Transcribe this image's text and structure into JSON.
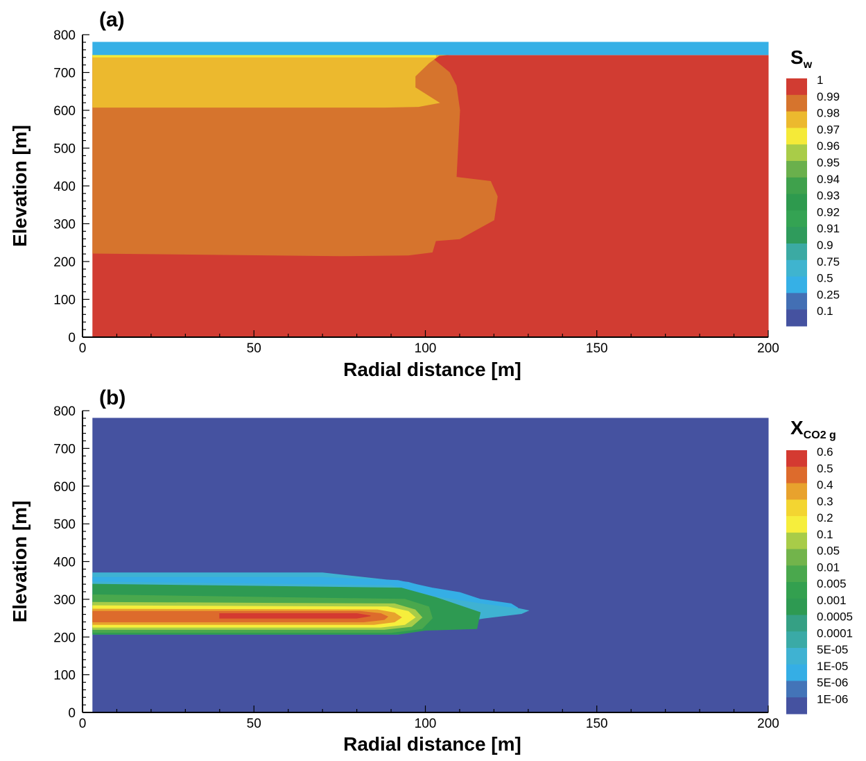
{
  "chart_data": [
    {
      "type": "heatmap",
      "panel_label": "(a)",
      "xlabel": "Radial distance [m]",
      "ylabel": "Elevation [m]",
      "xlim": [
        0,
        200
      ],
      "ylim": [
        0,
        800
      ],
      "xticks": [
        "0",
        "50",
        "100",
        "150",
        "200"
      ],
      "yticks": [
        "0",
        "100",
        "200",
        "300",
        "400",
        "500",
        "600",
        "700",
        "800"
      ],
      "legend_title": "S",
      "legend_subscript": "w",
      "legend_position": "right",
      "legend_levels": [
        "1",
        "0.99",
        "0.98",
        "0.97",
        "0.96",
        "0.95",
        "0.94",
        "0.93",
        "0.92",
        "0.91",
        "0.9",
        "0.75",
        "0.5",
        "0.25",
        "0.1"
      ],
      "legend_colors": [
        "#d13c32",
        "#d6742d",
        "#ecb92e",
        "#f5ea38",
        "#a9cc48",
        "#6ab04c",
        "#3fa14c",
        "#2e9a4e",
        "#34a353",
        "#2f9b5c",
        "#3baaa3",
        "#3fb4cf",
        "#36b0e6",
        "#436fb4",
        "#4552a0"
      ],
      "regions": [
        {
          "name": "background",
          "level": "1",
          "color": "#d13c32",
          "x": [
            3,
            200,
            200,
            3
          ],
          "y": [
            0,
            0,
            745,
            745
          ]
        },
        {
          "name": "band-0.99-lower",
          "level": "0.99",
          "color": "#d6742d",
          "x": [
            3,
            75,
            95,
            102,
            103,
            110,
            120,
            121,
            119,
            109,
            110,
            109,
            107,
            101,
            98,
            3
          ],
          "y": [
            222,
            215,
            217,
            225,
            255,
            260,
            310,
            372,
            412,
            423,
            600,
            665,
            700,
            745,
            745,
            745
          ]
        },
        {
          "name": "band-0.97-upper",
          "level": "0.97",
          "color": "#ecb92e",
          "x": [
            3,
            88,
            98,
            104,
            97,
            97,
            101,
            104,
            108,
            100,
            99,
            3
          ],
          "y": [
            608,
            608,
            610,
            620,
            660,
            690,
            725,
            745,
            748,
            748,
            748,
            748
          ]
        },
        {
          "name": "thin-layer-0.96",
          "level": "0.96",
          "color": "#f5ea38",
          "x": [
            3,
            103,
            103,
            3
          ],
          "y": [
            741,
            741,
            748,
            748
          ]
        },
        {
          "name": "top-layer-0.5",
          "level": "0.5",
          "color": "#36b0e6",
          "x": [
            3,
            200,
            200,
            3
          ],
          "y": [
            747,
            747,
            780,
            780
          ]
        }
      ]
    },
    {
      "type": "heatmap",
      "panel_label": "(b)",
      "xlabel": "Radial distance [m]",
      "ylabel": "Elevation [m]",
      "xlim": [
        0,
        200
      ],
      "ylim": [
        0,
        800
      ],
      "xticks": [
        "0",
        "50",
        "100",
        "150",
        "200"
      ],
      "yticks": [
        "0",
        "100",
        "200",
        "300",
        "400",
        "500",
        "600",
        "700",
        "800"
      ],
      "legend_title": "X",
      "legend_subscript": "CO2 g",
      "legend_position": "right",
      "legend_levels": [
        "0.6",
        "0.5",
        "0.4",
        "0.3",
        "0.2",
        "0.1",
        "0.05",
        "0.01",
        "0.005",
        "0.001",
        "0.0005",
        "0.0001",
        "5E-05",
        "1E-05",
        "5E-06",
        "1E-06"
      ],
      "legend_colors": [
        "#d43a31",
        "#dd6b2c",
        "#e8a22d",
        "#f3d531",
        "#f6ee3c",
        "#a8cc48",
        "#72b44b",
        "#4aa84d",
        "#33a04f",
        "#2e9a52",
        "#35a084",
        "#3aaaa6",
        "#3fb2d2",
        "#35aee5",
        "#4374b8",
        "#4552a0"
      ],
      "regions": [
        {
          "name": "background",
          "level": "1E-06",
          "color": "#4552a0",
          "x": [
            3,
            200,
            200,
            3
          ],
          "y": [
            0,
            0,
            780,
            780
          ]
        },
        {
          "name": "plume-5E-05",
          "level": "5E-05",
          "color": "#3fb2d2",
          "x": [
            3,
            92,
            100,
            117,
            128,
            130,
            117,
            103,
            95,
            70,
            3
          ],
          "y": [
            207,
            207,
            225,
            250,
            262,
            270,
            295,
            325,
            345,
            370,
            370
          ]
        },
        {
          "name": "plume-1E-05",
          "level": "1E-05",
          "color": "#35aee5",
          "x": [
            3,
            70,
            92,
            102,
            110,
            116,
            125,
            127,
            116,
            102,
            90,
            3
          ],
          "y": [
            358,
            358,
            350,
            330,
            318,
            300,
            288,
            277,
            290,
            310,
            338,
            348
          ]
        },
        {
          "name": "plume-0.001",
          "level": "0.001",
          "color": "#2e9a52",
          "x": [
            3,
            92,
            100,
            115,
            116,
            103,
            93,
            3
          ],
          "y": [
            207,
            207,
            218,
            222,
            265,
            305,
            330,
            340
          ]
        },
        {
          "name": "plume-0.01",
          "level": "0.01",
          "color": "#4aa84d",
          "x": [
            3,
            90,
            99,
            102,
            101,
            94,
            3
          ],
          "y": [
            212,
            212,
            222,
            250,
            280,
            300,
            312
          ]
        },
        {
          "name": "plume-0.1",
          "level": "0.1",
          "color": "#a8cc48",
          "x": [
            3,
            88,
            96,
            99,
            97,
            91,
            3
          ],
          "y": [
            220,
            220,
            228,
            252,
            272,
            288,
            292
          ]
        },
        {
          "name": "plume-0.2",
          "level": "0.2",
          "color": "#f6ee3c",
          "x": [
            3,
            87,
            94,
            97,
            95,
            89,
            3
          ],
          "y": [
            226,
            226,
            233,
            252,
            268,
            280,
            283
          ]
        },
        {
          "name": "plume-0.4",
          "level": "0.4",
          "color": "#e8a22d",
          "x": [
            3,
            85,
            91,
            93,
            91,
            86,
            3
          ],
          "y": [
            233,
            233,
            240,
            252,
            264,
            272,
            274
          ]
        },
        {
          "name": "plume-0.5",
          "level": "0.5",
          "color": "#dd6b2c",
          "x": [
            3,
            82,
            88,
            89,
            87,
            81,
            3
          ],
          "y": [
            240,
            240,
            246,
            254,
            262,
            268,
            268
          ]
        },
        {
          "name": "plume-0.6",
          "level": "0.6",
          "color": "#d43a31",
          "x": [
            40,
            80,
            84,
            80,
            40
          ],
          "y": [
            250,
            250,
            256,
            262,
            262
          ]
        }
      ]
    }
  ]
}
